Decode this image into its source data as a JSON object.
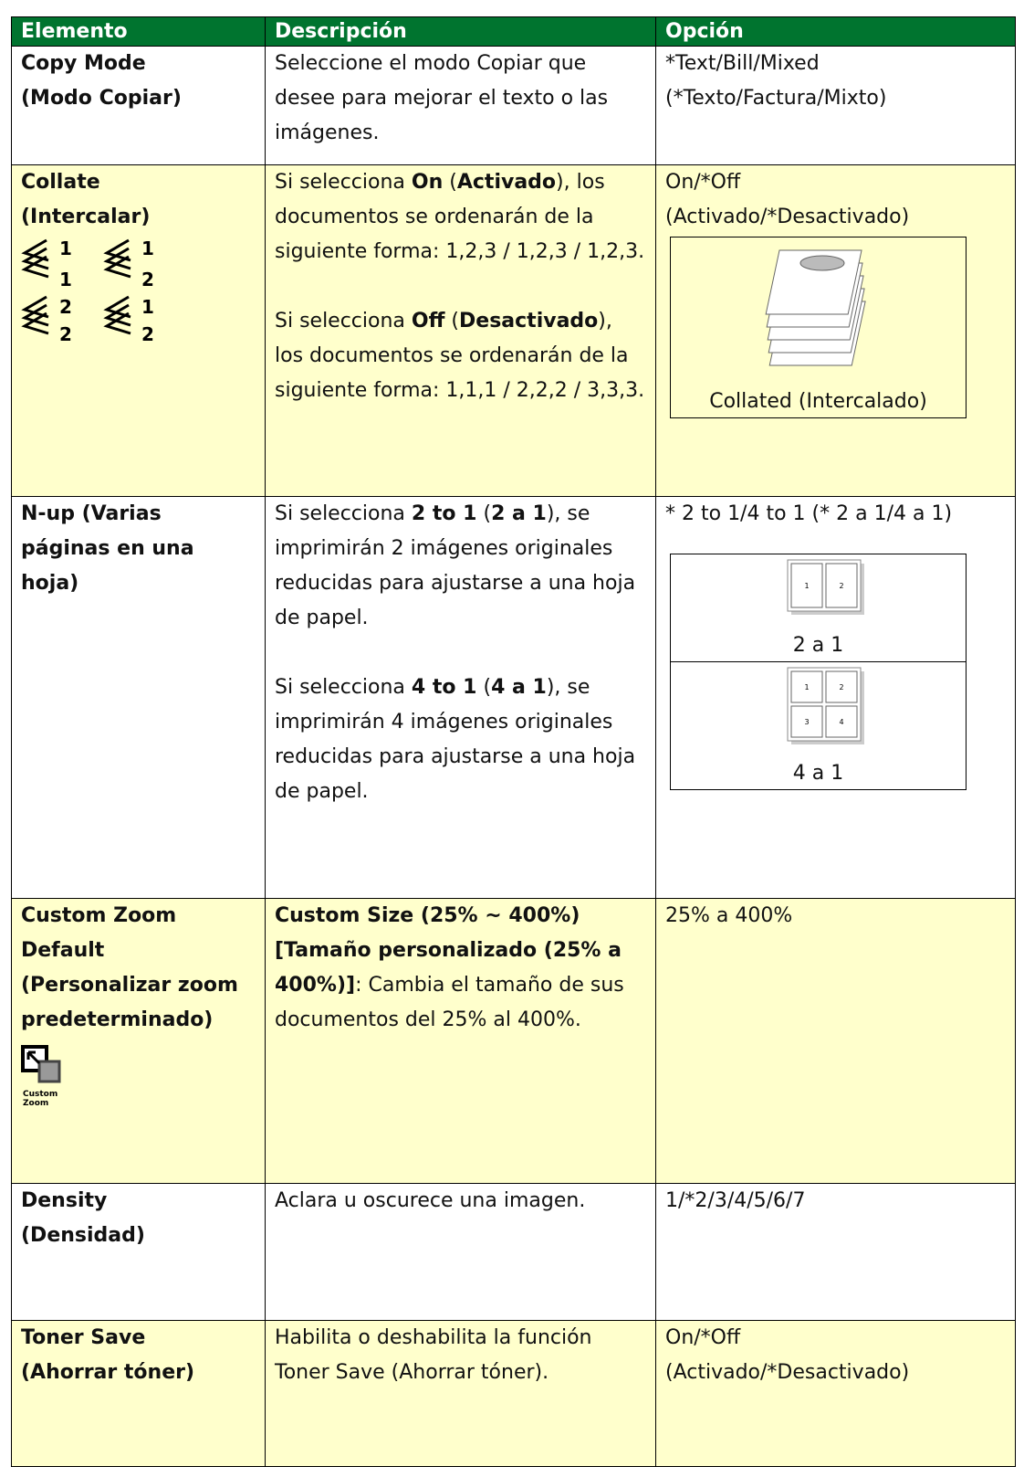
{
  "header": [
    "Elemento",
    "Descripción",
    "Opción"
  ],
  "rows": [
    {
      "item": [
        "Copy Mode",
        "(Modo Copiar)"
      ],
      "description": [
        [
          {
            "text": "Seleccione el modo Copiar que desee para mejorar el texto o las imágenes.",
            "bold": false
          }
        ]
      ],
      "option": [
        "*Text/Bill/Mixed",
        "(*Texto/Factura/Mixto)"
      ]
    },
    {
      "item": [
        "Collate",
        "(Intercalar)"
      ],
      "icon_digits": [
        "1",
        "1",
        "2",
        "2",
        "1",
        "2",
        "1",
        "2"
      ],
      "description": [
        [
          {
            "text": "Si selecciona ",
            "bold": false
          },
          {
            "text": "On",
            "bold": true
          },
          {
            "text": " (",
            "bold": false
          },
          {
            "text": "Activado",
            "bold": true
          },
          {
            "text": "), los documentos se ordenarán de la siguiente forma: 1,2,3 / 1,2,3 / 1,2,3.",
            "bold": false
          }
        ],
        [
          {
            "text": "Si selecciona ",
            "bold": false
          },
          {
            "text": "Off",
            "bold": true
          },
          {
            "text": " (",
            "bold": false
          },
          {
            "text": "Desactivado",
            "bold": true
          },
          {
            "text": "), los documentos se ordenarán de la siguiente forma: 1,1,1 / 2,2,2 / 3,3,3.",
            "bold": false
          }
        ]
      ],
      "option": [
        "On/*Off",
        "(Activado/*Desactivado)"
      ],
      "figures": [
        {
          "caption": "Collated (Intercalado)"
        }
      ]
    },
    {
      "item": [
        "N-up (Varias páginas en una hoja)"
      ],
      "description": [
        [
          {
            "text": "Si selecciona ",
            "bold": false
          },
          {
            "text": "2 to 1",
            "bold": true
          },
          {
            "text": " (",
            "bold": false
          },
          {
            "text": "2 a 1",
            "bold": true
          },
          {
            "text": "), se imprimirán 2 imágenes originales reducidas para ajustarse a una hoja de papel.",
            "bold": false
          }
        ],
        [
          {
            "text": "Si selecciona ",
            "bold": false
          },
          {
            "text": "4 to 1",
            "bold": true
          },
          {
            "text": " (",
            "bold": false
          },
          {
            "text": "4 a 1",
            "bold": true
          },
          {
            "text": "), se imprimirán 4 imágenes originales reducidas para ajustarse a una hoja de papel.",
            "bold": false
          }
        ]
      ],
      "option": [
        "* 2 to 1/4 to 1 (* 2 a 1/4 a 1)"
      ],
      "figures": [
        {
          "caption": "2 a 1",
          "pages": [
            "1",
            "2"
          ]
        },
        {
          "caption": "4 a 1",
          "pages": [
            "1",
            "2",
            "3",
            "4"
          ]
        }
      ]
    },
    {
      "item": [
        "Custom Zoom Default (Personalizar zoom predeterminado)"
      ],
      "icon_label": [
        "Custom",
        "Zoom"
      ],
      "description": [
        [
          {
            "text": "Custom Size (25% ~ 400%) [Tamaño personalizado (25% a 400%)]",
            "bold": true
          },
          {
            "text": ": Cambia el tamaño de sus documentos del 25% al 400%.",
            "bold": false
          }
        ]
      ],
      "option": [
        "25% a 400%"
      ]
    },
    {
      "item": [
        "Density",
        "(Densidad)"
      ],
      "description": [
        [
          {
            "text": "Aclara u oscurece una imagen.",
            "bold": false
          }
        ]
      ],
      "option": [
        "1/*2/3/4/5/6/7"
      ]
    },
    {
      "item": [
        "Toner Save",
        "(Ahorrar tóner)"
      ],
      "description": [
        [
          {
            "text": "Habilita o deshabilita la función Toner Save (Ahorrar tóner).",
            "bold": false
          }
        ]
      ],
      "option": [
        "On/*Off",
        "(Activado/*Desactivado)"
      ]
    }
  ]
}
